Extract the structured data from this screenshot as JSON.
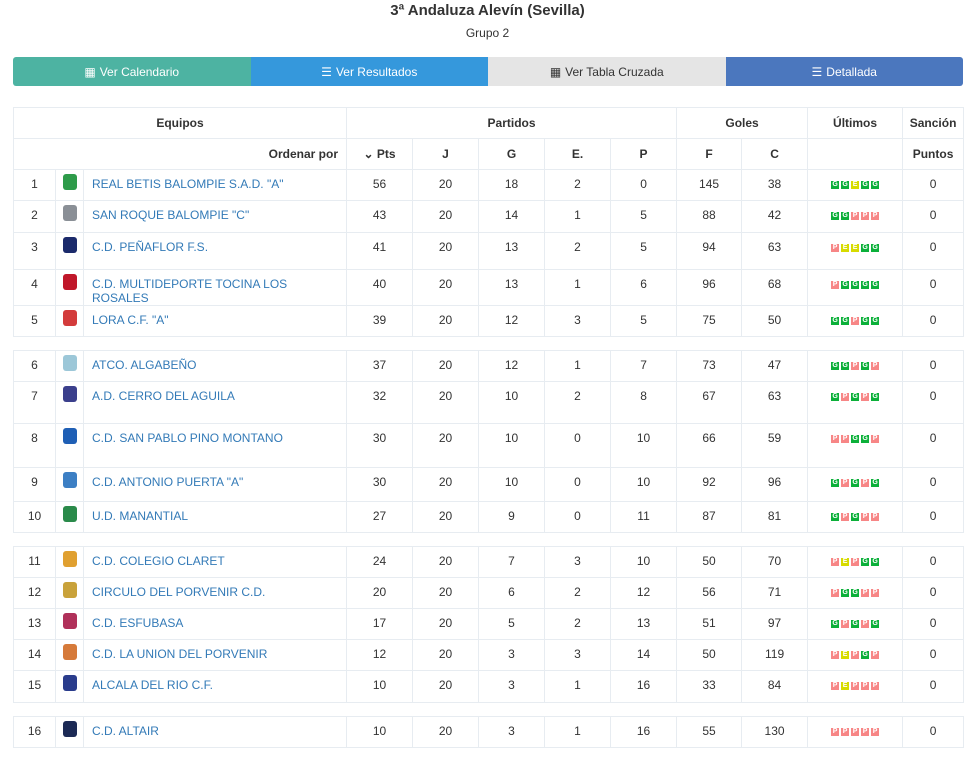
{
  "title": "3ª Andaluza Alevín (Sevilla)",
  "subtitle": "Grupo 2",
  "buttons": [
    "Ver Calendario",
    "Ver Resultados",
    "Ver Tabla Cruzada",
    "Detallada"
  ],
  "header": {
    "equipos": "Equipos",
    "partidos": "Partidos",
    "goles": "Goles",
    "ultimos": "Últimos",
    "sancion": "Sanción",
    "ordenar": "Ordenar por",
    "pts": "Pts",
    "j": "J",
    "g": "G",
    "e": "E.",
    "p": "P",
    "f": "F",
    "c": "C",
    "puntos": "Puntos"
  },
  "colors": {
    "G": "#0cb03a",
    "P": "#f78686",
    "E": "#d7db00",
    "link": "#337ab7"
  },
  "rows": [
    {
      "pos": "1",
      "team": "REAL BETIS BALOMPIE S.A.D. \"A\"",
      "pts": "56",
      "j": "20",
      "g": "18",
      "e": "2",
      "p": "0",
      "f": "145",
      "c": "38",
      "last": "GGEGG",
      "san": "0",
      "logo": "#2e9b4a"
    },
    {
      "pos": "2",
      "team": "SAN ROQUE BALOMPIE \"C\"",
      "pts": "43",
      "j": "20",
      "g": "14",
      "e": "1",
      "p": "5",
      "f": "88",
      "c": "42",
      "last": "GGPPP",
      "san": "0",
      "logo": "#8a8f96"
    },
    {
      "pos": "3",
      "team": "C.D. PEÑAFLOR F.S.",
      "pts": "41",
      "j": "20",
      "g": "13",
      "e": "2",
      "p": "5",
      "f": "94",
      "c": "63",
      "last": "PEEGG",
      "san": "0",
      "logo": "#1b2a6b"
    },
    {
      "pos": "4",
      "team": "C.D. MULTIDEPORTE TOCINA LOS ROSALES",
      "pts": "40",
      "j": "20",
      "g": "13",
      "e": "1",
      "p": "6",
      "f": "96",
      "c": "68",
      "last": "PGGGG",
      "san": "0",
      "logo": "#c0172a"
    },
    {
      "pos": "5",
      "team": "LORA C.F. \"A\"",
      "pts": "39",
      "j": "20",
      "g": "12",
      "e": "3",
      "p": "5",
      "f": "75",
      "c": "50",
      "last": "GGPGG",
      "san": "0",
      "logo": "#d33b3b"
    },
    {
      "pos": "6",
      "team": "ATCO. ALGABEÑO",
      "pts": "37",
      "j": "20",
      "g": "12",
      "e": "1",
      "p": "7",
      "f": "73",
      "c": "47",
      "last": "GGPGP",
      "san": "0",
      "logo": "#9cc7d8"
    },
    {
      "pos": "7",
      "team": "A.D. CERRO DEL AGUILA",
      "pts": "32",
      "j": "20",
      "g": "10",
      "e": "2",
      "p": "8",
      "f": "67",
      "c": "63",
      "last": "GPGPG",
      "san": "0",
      "logo": "#3b3f8c"
    },
    {
      "pos": "8",
      "team": "C.D. SAN PABLO PINO MONTANO",
      "pts": "30",
      "j": "20",
      "g": "10",
      "e": "0",
      "p": "10",
      "f": "66",
      "c": "59",
      "last": "PPGGP",
      "san": "0",
      "logo": "#1f5fb5"
    },
    {
      "pos": "9",
      "team": "C.D. ANTONIO PUERTA \"A\"",
      "pts": "30",
      "j": "20",
      "g": "10",
      "e": "0",
      "p": "10",
      "f": "92",
      "c": "96",
      "last": "GPGPG",
      "san": "0",
      "logo": "#3c7fc4"
    },
    {
      "pos": "10",
      "team": "U.D. MANANTIAL",
      "pts": "27",
      "j": "20",
      "g": "9",
      "e": "0",
      "p": "11",
      "f": "87",
      "c": "81",
      "last": "GPGPP",
      "san": "0",
      "logo": "#2a8a4a"
    },
    {
      "pos": "11",
      "team": "C.D. COLEGIO CLARET",
      "pts": "24",
      "j": "20",
      "g": "7",
      "e": "3",
      "p": "10",
      "f": "50",
      "c": "70",
      "last": "PEPGG",
      "san": "0",
      "logo": "#e0a030"
    },
    {
      "pos": "12",
      "team": "CIRCULO DEL PORVENIR C.D.",
      "pts": "20",
      "j": "20",
      "g": "6",
      "e": "2",
      "p": "12",
      "f": "56",
      "c": "71",
      "last": "PGGPP",
      "san": "0",
      "logo": "#c9a23a"
    },
    {
      "pos": "13",
      "team": "C.D. ESFUBASA",
      "pts": "17",
      "j": "20",
      "g": "5",
      "e": "2",
      "p": "13",
      "f": "51",
      "c": "97",
      "last": "GPGPG",
      "san": "0",
      "logo": "#b0305a"
    },
    {
      "pos": "14",
      "team": "C.D. LA UNION DEL PORVENIR",
      "pts": "12",
      "j": "20",
      "g": "3",
      "e": "3",
      "p": "14",
      "f": "50",
      "c": "119",
      "last": "PEPGP",
      "san": "0",
      "logo": "#d67a3a"
    },
    {
      "pos": "15",
      "team": "ALCALA DEL RIO C.F.",
      "pts": "10",
      "j": "20",
      "g": "3",
      "e": "1",
      "p": "16",
      "f": "33",
      "c": "84",
      "last": "PEPPP",
      "san": "0",
      "logo": "#2a3c8c"
    },
    {
      "pos": "16",
      "team": "C.D. ALTAIR",
      "pts": "10",
      "j": "20",
      "g": "3",
      "e": "1",
      "p": "16",
      "f": "55",
      "c": "130",
      "last": "PPPPP",
      "san": "0",
      "logo": "#1c2a55"
    }
  ]
}
